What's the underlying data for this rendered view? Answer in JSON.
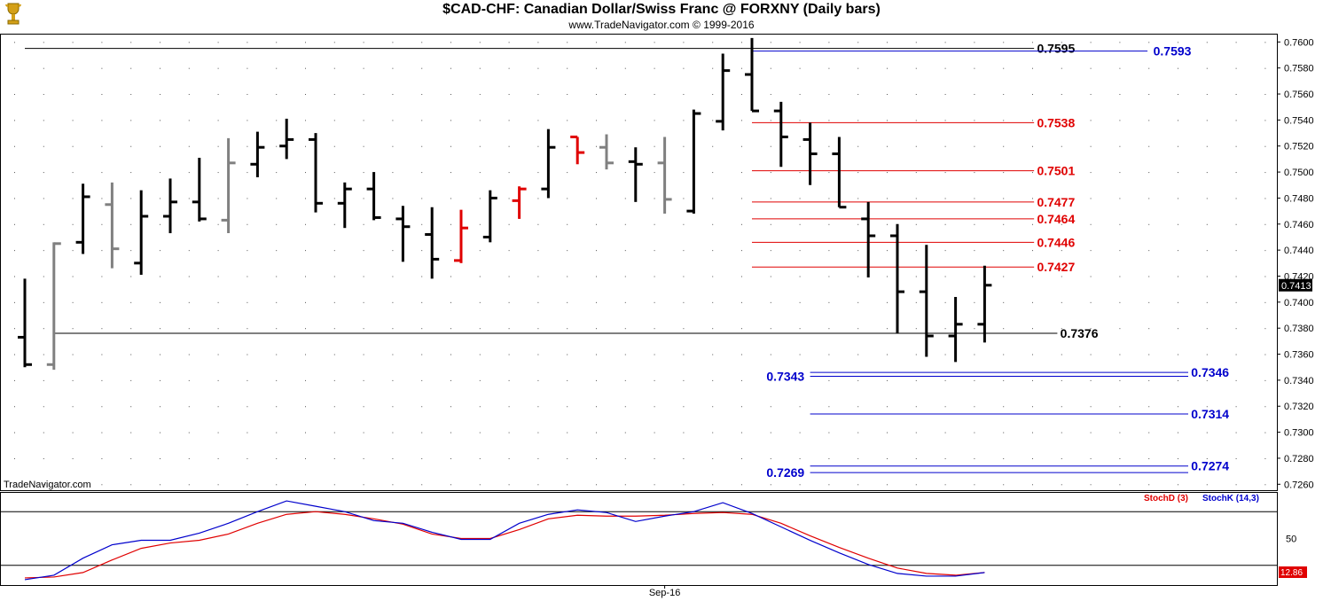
{
  "header": {
    "title": "$CAD-CHF:  Canadian Dollar/Swiss Franc @ FORXNY  (Daily bars)",
    "subtitle": "www.TradeNavigator.com © 1999-2016",
    "watermark": "TradeNavigator.com"
  },
  "colors": {
    "up_bar": "#000000",
    "neutral_bar": "#808080",
    "highlight_bar": "#e00000",
    "resistance": "#e00000",
    "support": "#0000cc",
    "stoch_d": "#e00000",
    "stoch_k": "#0000cc"
  },
  "chart_data": [
    {
      "type": "ohlc",
      "ylim": [
        0.725,
        0.761
      ],
      "y_ticks": [
        "0.7600",
        "0.7580",
        "0.7560",
        "0.7540",
        "0.7520",
        "0.7500",
        "0.7480",
        "0.7460",
        "0.7440",
        "0.7420",
        "0.7400",
        "0.7380",
        "0.7360",
        "0.7340",
        "0.7320",
        "0.7300",
        "0.7280",
        "0.7260"
      ],
      "last_price": "0.7413",
      "x_ticks": [
        {
          "label": "Sep-16",
          "bar": 22
        }
      ],
      "bars": [
        {
          "o": 0.7373,
          "h": 0.7418,
          "l": 0.735,
          "c": 0.7352,
          "color": "black"
        },
        {
          "o": 0.7352,
          "h": 0.7446,
          "l": 0.7348,
          "c": 0.7445,
          "color": "gray"
        },
        {
          "o": 0.7446,
          "h": 0.7491,
          "l": 0.7437,
          "c": 0.7481,
          "color": "black"
        },
        {
          "o": 0.7475,
          "h": 0.7492,
          "l": 0.7426,
          "c": 0.7441,
          "color": "gray"
        },
        {
          "o": 0.743,
          "h": 0.7486,
          "l": 0.7421,
          "c": 0.7466,
          "color": "black"
        },
        {
          "o": 0.7466,
          "h": 0.7495,
          "l": 0.7453,
          "c": 0.7477,
          "color": "black"
        },
        {
          "o": 0.7477,
          "h": 0.7511,
          "l": 0.7462,
          "c": 0.7464,
          "color": "black"
        },
        {
          "o": 0.7463,
          "h": 0.7526,
          "l": 0.7453,
          "c": 0.7507,
          "color": "gray"
        },
        {
          "o": 0.7506,
          "h": 0.7531,
          "l": 0.7496,
          "c": 0.7519,
          "color": "black"
        },
        {
          "o": 0.752,
          "h": 0.7541,
          "l": 0.751,
          "c": 0.7525,
          "color": "black"
        },
        {
          "o": 0.7525,
          "h": 0.753,
          "l": 0.7469,
          "c": 0.7476,
          "color": "black"
        },
        {
          "o": 0.7476,
          "h": 0.7492,
          "l": 0.7457,
          "c": 0.7487,
          "color": "black"
        },
        {
          "o": 0.7487,
          "h": 0.75,
          "l": 0.7463,
          "c": 0.7465,
          "color": "black"
        },
        {
          "o": 0.7464,
          "h": 0.7474,
          "l": 0.7431,
          "c": 0.7458,
          "color": "black"
        },
        {
          "o": 0.7452,
          "h": 0.7473,
          "l": 0.7418,
          "c": 0.7433,
          "color": "black"
        },
        {
          "o": 0.7432,
          "h": 0.7471,
          "l": 0.743,
          "c": 0.7457,
          "color": "red"
        },
        {
          "o": 0.745,
          "h": 0.7486,
          "l": 0.7446,
          "c": 0.748,
          "color": "black"
        },
        {
          "o": 0.7478,
          "h": 0.7489,
          "l": 0.7464,
          "c": 0.7487,
          "color": "red"
        },
        {
          "o": 0.7487,
          "h": 0.7533,
          "l": 0.748,
          "c": 0.7519,
          "color": "black"
        },
        {
          "o": 0.7527,
          "h": 0.7527,
          "l": 0.7506,
          "c": 0.7515,
          "color": "red"
        },
        {
          "o": 0.7519,
          "h": 0.7529,
          "l": 0.7502,
          "c": 0.7507,
          "color": "gray"
        },
        {
          "o": 0.7508,
          "h": 0.7519,
          "l": 0.7477,
          "c": 0.7506,
          "color": "black"
        },
        {
          "o": 0.7507,
          "h": 0.7527,
          "l": 0.7468,
          "c": 0.7479,
          "color": "gray"
        },
        {
          "o": 0.747,
          "h": 0.7548,
          "l": 0.7468,
          "c": 0.7545,
          "color": "black"
        },
        {
          "o": 0.7539,
          "h": 0.7591,
          "l": 0.7532,
          "c": 0.7578,
          "color": "black"
        },
        {
          "o": 0.7575,
          "h": 0.7603,
          "l": 0.7547,
          "c": 0.7547,
          "color": "black"
        },
        {
          "o": 0.7547,
          "h": 0.7554,
          "l": 0.7504,
          "c": 0.7527,
          "color": "black"
        },
        {
          "o": 0.7525,
          "h": 0.7538,
          "l": 0.749,
          "c": 0.7514,
          "color": "black"
        },
        {
          "o": 0.7514,
          "h": 0.7527,
          "l": 0.7473,
          "c": 0.7473,
          "color": "black"
        },
        {
          "o": 0.7464,
          "h": 0.7477,
          "l": 0.7419,
          "c": 0.7451,
          "color": "black"
        },
        {
          "o": 0.7451,
          "h": 0.746,
          "l": 0.7376,
          "c": 0.7408,
          "color": "black"
        },
        {
          "o": 0.7408,
          "h": 0.7444,
          "l": 0.7358,
          "c": 0.7374,
          "color": "black"
        },
        {
          "o": 0.7374,
          "h": 0.7404,
          "l": 0.7354,
          "c": 0.7383,
          "color": "black"
        },
        {
          "o": 0.7383,
          "h": 0.7428,
          "l": 0.7369,
          "c": 0.7413,
          "color": "black"
        }
      ],
      "levels": [
        {
          "value": 0.7595,
          "label": "0.7595",
          "kind": "line-black",
          "label_color": "#000000",
          "x_from": 0,
          "x_to": 34.7,
          "label_at": 34.8
        },
        {
          "value": 0.7593,
          "label": "0.7593",
          "kind": "line-blue",
          "label_color": "#0000cc",
          "x_from": 25,
          "x_to": 38.6,
          "label_at": 38.8
        },
        {
          "value": 0.7538,
          "label": "0.7538",
          "kind": "line-red",
          "label_color": "#e00000",
          "x_from": 25,
          "x_to": 34.7,
          "label_at": 34.8
        },
        {
          "value": 0.7501,
          "label": "0.7501",
          "kind": "line-red",
          "label_color": "#e00000",
          "x_from": 25,
          "x_to": 34.7,
          "label_at": 34.8
        },
        {
          "value": 0.7477,
          "label": "0.7477",
          "kind": "line-red",
          "label_color": "#e00000",
          "x_from": 25,
          "x_to": 34.7,
          "label_at": 34.8
        },
        {
          "value": 0.7464,
          "label": "0.7464",
          "kind": "line-red",
          "label_color": "#e00000",
          "x_from": 25,
          "x_to": 34.7,
          "label_at": 34.8
        },
        {
          "value": 0.7446,
          "label": "0.7446",
          "kind": "line-red",
          "label_color": "#e00000",
          "x_from": 25,
          "x_to": 34.7,
          "label_at": 34.8
        },
        {
          "value": 0.7427,
          "label": "0.7427",
          "kind": "line-red",
          "label_color": "#e00000",
          "x_from": 25,
          "x_to": 34.7,
          "label_at": 34.8
        },
        {
          "value": 0.7376,
          "label": "0.7376",
          "kind": "line-black",
          "label_color": "#000000",
          "x_from": 1,
          "x_to": 35.5,
          "label_at": 35.6
        },
        {
          "value": 0.7346,
          "label": "0.7346",
          "kind": "line-blue",
          "label_color": "#0000cc",
          "x_from": 27,
          "x_to": 40,
          "label_at": 40.1
        },
        {
          "value": 0.7343,
          "label": "0.7343",
          "kind": "line-blue",
          "label_color": "#0000cc",
          "x_from": 27,
          "x_to": 40,
          "label_at": 25.5
        },
        {
          "value": 0.7314,
          "label": "0.7314",
          "kind": "line-blue",
          "label_color": "#0000cc",
          "x_from": 27,
          "x_to": 40,
          "label_at": 40.1
        },
        {
          "value": 0.7274,
          "label": "0.7274",
          "kind": "line-blue",
          "label_color": "#0000cc",
          "x_from": 27,
          "x_to": 40,
          "label_at": 40.1
        },
        {
          "value": 0.7269,
          "label": "0.7269",
          "kind": "line-blue",
          "label_color": "#0000cc",
          "x_from": 27,
          "x_to": 40,
          "label_at": 25.5
        }
      ]
    },
    {
      "type": "line",
      "indicator": "stochastic",
      "ylim": [
        0,
        100
      ],
      "y_ticks": [
        "50"
      ],
      "reference_lines": [
        20,
        80
      ],
      "legend": [
        {
          "name": "StochD (3)",
          "color": "#e00000"
        },
        {
          "name": "StochK (14,3)",
          "color": "#0000cc"
        }
      ],
      "last_value": "12.86",
      "series": [
        {
          "name": "StochD (3)",
          "color": "#e00000",
          "values": [
            6,
            7,
            12,
            26,
            39,
            45,
            48,
            55,
            67,
            77,
            80,
            77,
            72,
            66,
            55,
            50,
            50,
            60,
            72,
            76,
            75,
            75,
            76,
            78,
            79,
            77,
            67,
            53,
            40,
            28,
            17,
            11,
            9,
            12
          ]
        },
        {
          "name": "StochK (14,3)",
          "color": "#0000cc",
          "values": [
            4,
            9,
            28,
            43,
            48,
            48,
            56,
            67,
            80,
            92,
            86,
            80,
            70,
            67,
            57,
            49,
            49,
            67,
            77,
            82,
            79,
            69,
            75,
            80,
            90,
            78,
            63,
            48,
            34,
            21,
            11,
            8,
            8,
            12
          ]
        }
      ]
    }
  ]
}
